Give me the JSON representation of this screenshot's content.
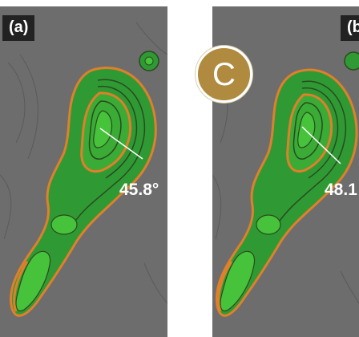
{
  "panels": [
    {
      "label": "(a)",
      "angle": "45.8°"
    },
    {
      "label": "(b",
      "angle": "48.1"
    }
  ],
  "badge": {
    "letter": "C"
  },
  "colors": {
    "background": "#6d6d6d",
    "contour_fill_outer": "#2f9a33",
    "contour_fill_inner": "#46c23b",
    "contour_line_dark": "#2a4a20",
    "contour_line_orange": "#e07f2c",
    "label_box": "#222222",
    "badge_fill": "#b08a3e"
  }
}
